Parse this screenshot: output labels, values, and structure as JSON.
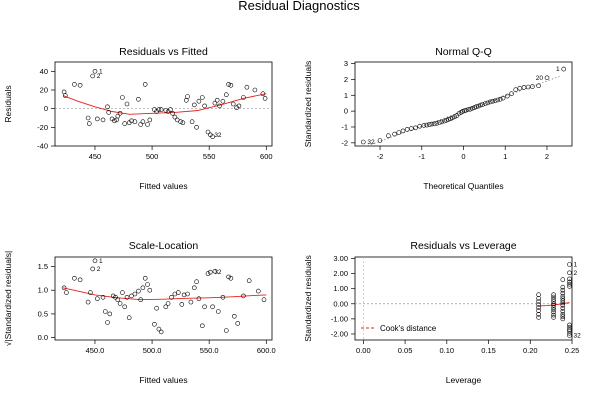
{
  "figure": {
    "title": "Residual Diagnostics"
  },
  "chart_data": [
    {
      "id": "rvf",
      "type": "scatter",
      "title": "Residuals vs Fitted",
      "xlabel": "Fitted values",
      "ylabel": "Residuals",
      "xlim": [
        415,
        605
      ],
      "ylim": [
        -40,
        50
      ],
      "xticks": [
        450,
        500,
        550,
        600
      ],
      "yticks": [
        -40,
        -20,
        0,
        20,
        40
      ],
      "points": [
        [
          423,
          18
        ],
        [
          424,
          14
        ],
        [
          432,
          26
        ],
        [
          437,
          25
        ],
        [
          444,
          -10
        ],
        [
          445,
          -16
        ],
        [
          448,
          35
        ],
        [
          450,
          40
        ],
        [
          452,
          -11
        ],
        [
          457,
          -12
        ],
        [
          461,
          2
        ],
        [
          462,
          -4
        ],
        [
          465,
          -11
        ],
        [
          467,
          -13
        ],
        [
          469,
          -12
        ],
        [
          470,
          -8
        ],
        [
          472,
          -5
        ],
        [
          474,
          12
        ],
        [
          476,
          -16
        ],
        [
          478,
          5
        ],
        [
          480,
          -15
        ],
        [
          482,
          -13
        ],
        [
          485,
          -14
        ],
        [
          488,
          10
        ],
        [
          490,
          -17
        ],
        [
          492,
          -14
        ],
        [
          494,
          26
        ],
        [
          496,
          -17
        ],
        [
          498,
          -12
        ],
        [
          502,
          -1
        ],
        [
          504,
          -3
        ],
        [
          506,
          -1
        ],
        [
          508,
          -1
        ],
        [
          512,
          -2
        ],
        [
          514,
          -3
        ],
        [
          516,
          -1
        ],
        [
          518,
          -5
        ],
        [
          520,
          -9
        ],
        [
          522,
          -12
        ],
        [
          525,
          -14
        ],
        [
          527,
          -15
        ],
        [
          530,
          9
        ],
        [
          531,
          13
        ],
        [
          535,
          -14
        ],
        [
          537,
          4
        ],
        [
          539,
          -20
        ],
        [
          541,
          8
        ],
        [
          544,
          12
        ],
        [
          546,
          3
        ],
        [
          549,
          -25
        ],
        [
          551,
          -28
        ],
        [
          553,
          -30
        ],
        [
          555,
          6
        ],
        [
          557,
          9
        ],
        [
          559,
          3
        ],
        [
          562,
          8
        ],
        [
          565,
          15
        ],
        [
          567,
          26
        ],
        [
          569,
          25
        ],
        [
          571,
          5
        ],
        [
          574,
          1
        ],
        [
          576,
          3
        ],
        [
          580,
          12
        ],
        [
          583,
          23
        ],
        [
          590,
          20
        ],
        [
          597,
          16
        ],
        [
          599,
          11
        ]
      ],
      "point_labels": [
        {
          "x": 450,
          "y": 40,
          "text": "1"
        },
        {
          "x": 448,
          "y": 35,
          "text": "2"
        },
        {
          "x": 551,
          "y": -28,
          "text": "32"
        }
      ],
      "smooth": [
        [
          422,
          14
        ],
        [
          435,
          8
        ],
        [
          450,
          2
        ],
        [
          465,
          -3
        ],
        [
          480,
          -6
        ],
        [
          500,
          -5
        ],
        [
          520,
          -4
        ],
        [
          540,
          -2
        ],
        [
          560,
          4
        ],
        [
          580,
          11
        ],
        [
          600,
          16
        ]
      ],
      "reference_line": 0
    },
    {
      "id": "qq",
      "type": "scatter",
      "title": "Normal Q-Q",
      "xlabel": "Theoretical Quantiles",
      "ylabel": "Standardized residuals",
      "xlim": [
        -2.6,
        2.6
      ],
      "ylim": [
        -2.2,
        3.1
      ],
      "xticks": [
        -2,
        -1,
        0,
        1,
        2
      ],
      "yticks": [
        -2,
        -1,
        0,
        1,
        2,
        3
      ],
      "points": [
        [
          -2.4,
          -1.95
        ],
        [
          -2.0,
          -1.85
        ],
        [
          -1.8,
          -1.55
        ],
        [
          -1.65,
          -1.45
        ],
        [
          -1.55,
          -1.35
        ],
        [
          -1.45,
          -1.25
        ],
        [
          -1.35,
          -1.15
        ],
        [
          -1.25,
          -1.1
        ],
        [
          -1.15,
          -1.05
        ],
        [
          -1.05,
          -0.95
        ],
        [
          -0.95,
          -0.9
        ],
        [
          -0.88,
          -0.88
        ],
        [
          -0.82,
          -0.85
        ],
        [
          -0.76,
          -0.82
        ],
        [
          -0.7,
          -0.8
        ],
        [
          -0.64,
          -0.77
        ],
        [
          -0.58,
          -0.72
        ],
        [
          -0.52,
          -0.68
        ],
        [
          -0.46,
          -0.62
        ],
        [
          -0.41,
          -0.58
        ],
        [
          -0.36,
          -0.52
        ],
        [
          -0.31,
          -0.48
        ],
        [
          -0.26,
          -0.42
        ],
        [
          -0.21,
          -0.35
        ],
        [
          -0.16,
          -0.28
        ],
        [
          -0.11,
          -0.15
        ],
        [
          -0.06,
          -0.08
        ],
        [
          -0.02,
          -0.02
        ],
        [
          0.02,
          0.02
        ],
        [
          0.06,
          0.05
        ],
        [
          0.11,
          0.1
        ],
        [
          0.16,
          0.12
        ],
        [
          0.21,
          0.18
        ],
        [
          0.26,
          0.22
        ],
        [
          0.31,
          0.28
        ],
        [
          0.36,
          0.32
        ],
        [
          0.41,
          0.38
        ],
        [
          0.46,
          0.42
        ],
        [
          0.52,
          0.48
        ],
        [
          0.58,
          0.52
        ],
        [
          0.64,
          0.58
        ],
        [
          0.7,
          0.62
        ],
        [
          0.76,
          0.65
        ],
        [
          0.82,
          0.7
        ],
        [
          0.88,
          0.75
        ],
        [
          0.95,
          0.82
        ],
        [
          1.05,
          0.95
        ],
        [
          1.15,
          1.1
        ],
        [
          1.25,
          1.35
        ],
        [
          1.35,
          1.45
        ],
        [
          1.45,
          1.5
        ],
        [
          1.55,
          1.52
        ],
        [
          1.65,
          1.55
        ],
        [
          1.8,
          1.6
        ],
        [
          2.0,
          2.1
        ],
        [
          2.4,
          2.65
        ]
      ],
      "point_labels": [
        {
          "x": 2.4,
          "y": 2.65,
          "text": "1"
        },
        {
          "x": 2.0,
          "y": 2.1,
          "text": "20"
        },
        {
          "x": -2.4,
          "y": -1.95,
          "text": "32"
        }
      ],
      "reference_line": "dotted diagonal"
    },
    {
      "id": "sl",
      "type": "scatter",
      "title": "Scale-Location",
      "xlabel": "Fitted values",
      "ylabel": "√|Standardized residuals|",
      "xlim": [
        415,
        605
      ],
      "ylim": [
        -0.05,
        1.7
      ],
      "xticks": [
        450,
        500,
        550,
        600
      ],
      "yticks": [
        0.0,
        0.5,
        1.0,
        1.5
      ],
      "points": [
        [
          423,
          1.05
        ],
        [
          425,
          0.95
        ],
        [
          432,
          1.25
        ],
        [
          437,
          1.22
        ],
        [
          444,
          0.75
        ],
        [
          446,
          0.95
        ],
        [
          448,
          1.45
        ],
        [
          450,
          1.62
        ],
        [
          452,
          0.82
        ],
        [
          457,
          0.85
        ],
        [
          459,
          0.55
        ],
        [
          461,
          0.32
        ],
        [
          463,
          0.5
        ],
        [
          466,
          0.88
        ],
        [
          468,
          0.85
        ],
        [
          470,
          0.8
        ],
        [
          472,
          0.72
        ],
        [
          474,
          0.95
        ],
        [
          476,
          0.65
        ],
        [
          478,
          0.85
        ],
        [
          480,
          0.42
        ],
        [
          482,
          0.88
        ],
        [
          485,
          0.92
        ],
        [
          488,
          0.98
        ],
        [
          490,
          0.8
        ],
        [
          492,
          1.05
        ],
        [
          494,
          1.25
        ],
        [
          496,
          1.12
        ],
        [
          498,
          1.0
        ],
        [
          502,
          0.28
        ],
        [
          504,
          0.62
        ],
        [
          506,
          0.18
        ],
        [
          508,
          0.12
        ],
        [
          512,
          0.65
        ],
        [
          514,
          0.72
        ],
        [
          517,
          0.85
        ],
        [
          520,
          0.92
        ],
        [
          523,
          0.95
        ],
        [
          526,
          0.7
        ],
        [
          528,
          0.9
        ],
        [
          531,
          0.92
        ],
        [
          534,
          0.75
        ],
        [
          537,
          1.05
        ],
        [
          539,
          1.18
        ],
        [
          541,
          0.82
        ],
        [
          544,
          0.25
        ],
        [
          546,
          0.65
        ],
        [
          549,
          1.35
        ],
        [
          551,
          1.38
        ],
        [
          553,
          0.65
        ],
        [
          555,
          1.4
        ],
        [
          558,
          0.55
        ],
        [
          562,
          0.85
        ],
        [
          565,
          0.15
        ],
        [
          567,
          1.28
        ],
        [
          569,
          1.25
        ],
        [
          572,
          0.45
        ],
        [
          575,
          0.3
        ],
        [
          580,
          0.88
        ],
        [
          585,
          1.2
        ],
        [
          593,
          0.98
        ],
        [
          598,
          0.8
        ]
      ],
      "point_labels": [
        {
          "x": 450,
          "y": 1.62,
          "text": "1"
        },
        {
          "x": 448,
          "y": 1.45,
          "text": "2"
        },
        {
          "x": 551,
          "y": 1.38,
          "text": "32"
        }
      ],
      "smooth": [
        [
          422,
          1.05
        ],
        [
          435,
          0.98
        ],
        [
          450,
          0.9
        ],
        [
          470,
          0.84
        ],
        [
          490,
          0.8
        ],
        [
          510,
          0.81
        ],
        [
          530,
          0.83
        ],
        [
          550,
          0.84
        ],
        [
          570,
          0.86
        ],
        [
          590,
          0.89
        ],
        [
          600,
          0.9
        ]
      ]
    },
    {
      "id": "rvl",
      "type": "scatter",
      "title": "Residuals vs Leverage",
      "xlabel": "Leverage",
      "ylabel": "Standardized residuals",
      "xlim": [
        -0.01,
        0.25
      ],
      "ylim": [
        -2.4,
        3.1
      ],
      "xticks": [
        0.0,
        0.05,
        0.1,
        0.15,
        0.2,
        0.25
      ],
      "yticks": [
        -2,
        -1,
        0,
        1,
        2,
        3
      ],
      "points": [
        [
          0.21,
          0.6
        ],
        [
          0.21,
          0.35
        ],
        [
          0.21,
          0.15
        ],
        [
          0.21,
          -0.05
        ],
        [
          0.21,
          -0.25
        ],
        [
          0.21,
          -0.45
        ],
        [
          0.21,
          -0.7
        ],
        [
          0.21,
          -0.9
        ],
        [
          0.228,
          0.6
        ],
        [
          0.228,
          0.45
        ],
        [
          0.228,
          0.3
        ],
        [
          0.228,
          0.15
        ],
        [
          0.228,
          0.0
        ],
        [
          0.228,
          -0.1
        ],
        [
          0.228,
          -0.25
        ],
        [
          0.228,
          -0.4
        ],
        [
          0.228,
          -0.55
        ],
        [
          0.228,
          -0.75
        ],
        [
          0.228,
          -0.9
        ],
        [
          0.239,
          1.6
        ],
        [
          0.239,
          1.1
        ],
        [
          0.239,
          0.9
        ],
        [
          0.239,
          0.7
        ],
        [
          0.239,
          0.5
        ],
        [
          0.239,
          0.35
        ],
        [
          0.239,
          0.2
        ],
        [
          0.239,
          0.05
        ],
        [
          0.239,
          -0.1
        ],
        [
          0.239,
          -0.3
        ],
        [
          0.239,
          -0.5
        ],
        [
          0.239,
          -0.7
        ],
        [
          0.239,
          -0.85
        ],
        [
          0.239,
          -1.0
        ],
        [
          0.247,
          2.6
        ],
        [
          0.247,
          2.05
        ],
        [
          0.247,
          1.65
        ],
        [
          0.247,
          1.45
        ],
        [
          0.247,
          1.3
        ],
        [
          0.247,
          1.15
        ],
        [
          0.247,
          -1.4
        ],
        [
          0.247,
          -1.55
        ],
        [
          0.247,
          -1.7
        ],
        [
          0.247,
          -1.8
        ],
        [
          0.247,
          -1.95
        ],
        [
          0.247,
          -2.1
        ]
      ],
      "point_labels": [
        {
          "x": 0.247,
          "y": 2.6,
          "text": "1"
        },
        {
          "x": 0.247,
          "y": 2.05,
          "text": "2"
        },
        {
          "x": 0.247,
          "y": -2.1,
          "text": "32"
        }
      ],
      "smooth": [
        [
          0.21,
          -0.15
        ],
        [
          0.22,
          -0.12
        ],
        [
          0.23,
          -0.07
        ],
        [
          0.24,
          0.02
        ],
        [
          0.247,
          0.08
        ]
      ],
      "legend": {
        "entries": [
          "Cook's distance"
        ],
        "position": "bottom-left"
      },
      "reference_line": 0
    }
  ]
}
